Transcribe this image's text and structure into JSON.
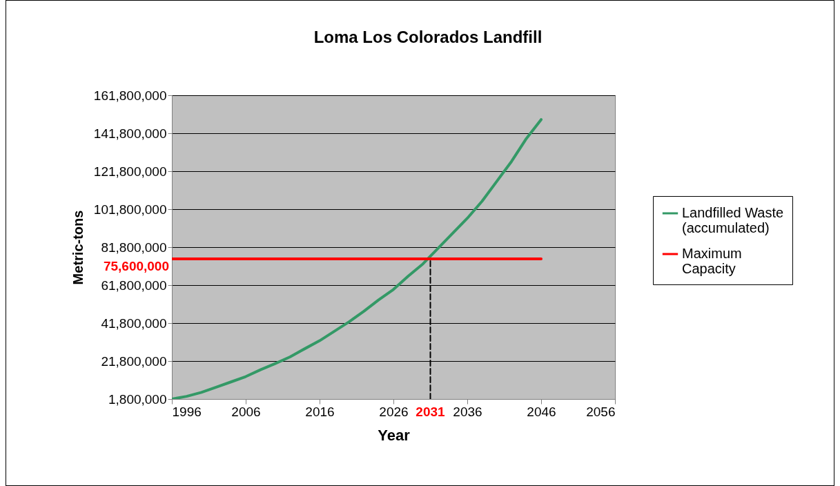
{
  "chart_data": {
    "type": "line",
    "title": "Loma Los Colorados Landfill",
    "xlabel": "Year",
    "ylabel": "Metric-tons",
    "series": [
      {
        "name": "Landfilled Waste (accumulated)",
        "color": "#339966",
        "x": [
          1996,
          1998,
          2000,
          2002,
          2004,
          2006,
          2008,
          2010,
          2012,
          2014,
          2016,
          2018,
          2020,
          2022,
          2024,
          2026,
          2028,
          2030,
          2032,
          2034,
          2036,
          2038,
          2040,
          2042,
          2044,
          2046
        ],
        "values": [
          1800000,
          3200000,
          5300000,
          8000000,
          10800000,
          13600000,
          17200000,
          20500000,
          24000000,
          28300000,
          32500000,
          37500000,
          42500000,
          48000000,
          54000000,
          59500000,
          66500000,
          73000000,
          81000000,
          89000000,
          97000000,
          106000000,
          116500000,
          127000000,
          139000000,
          149000000
        ]
      },
      {
        "name": "Maximum Capacity",
        "color": "#ff0000",
        "x": [
          1996,
          2046
        ],
        "values": [
          75600000,
          75600000
        ]
      },
      {
        "color": "#000000",
        "line_style": "dashed",
        "x": [
          2031,
          2031
        ],
        "values": [
          1800000,
          75600000
        ]
      }
    ],
    "annotations": [
      {
        "text": "75,600,000",
        "x": 1996,
        "y": 75600000
      },
      {
        "text": "2031",
        "x": 2031,
        "y": 1800000
      }
    ],
    "xlim": [
      1996,
      2056
    ],
    "xticks": [
      1996,
      2006,
      2016,
      2026,
      2036,
      2046,
      2056
    ],
    "ylim": [
      1800000,
      161800000
    ],
    "yticks": [
      {
        "value": 1800000,
        "label": "1,800,000"
      },
      {
        "value": 21800000,
        "label": "21,800,000"
      },
      {
        "value": 41800000,
        "label": "41,800,000"
      },
      {
        "value": 61800000,
        "label": "61,800,000"
      },
      {
        "value": 81800000,
        "label": "81,800,000"
      },
      {
        "value": 101800000,
        "label": "101,800,000"
      },
      {
        "value": 121800000,
        "label": "121,800,000"
      },
      {
        "value": 141800000,
        "label": "141,800,000"
      },
      {
        "value": 161800000,
        "label": "161,800,000"
      }
    ],
    "grid": "y",
    "legend": "right"
  }
}
